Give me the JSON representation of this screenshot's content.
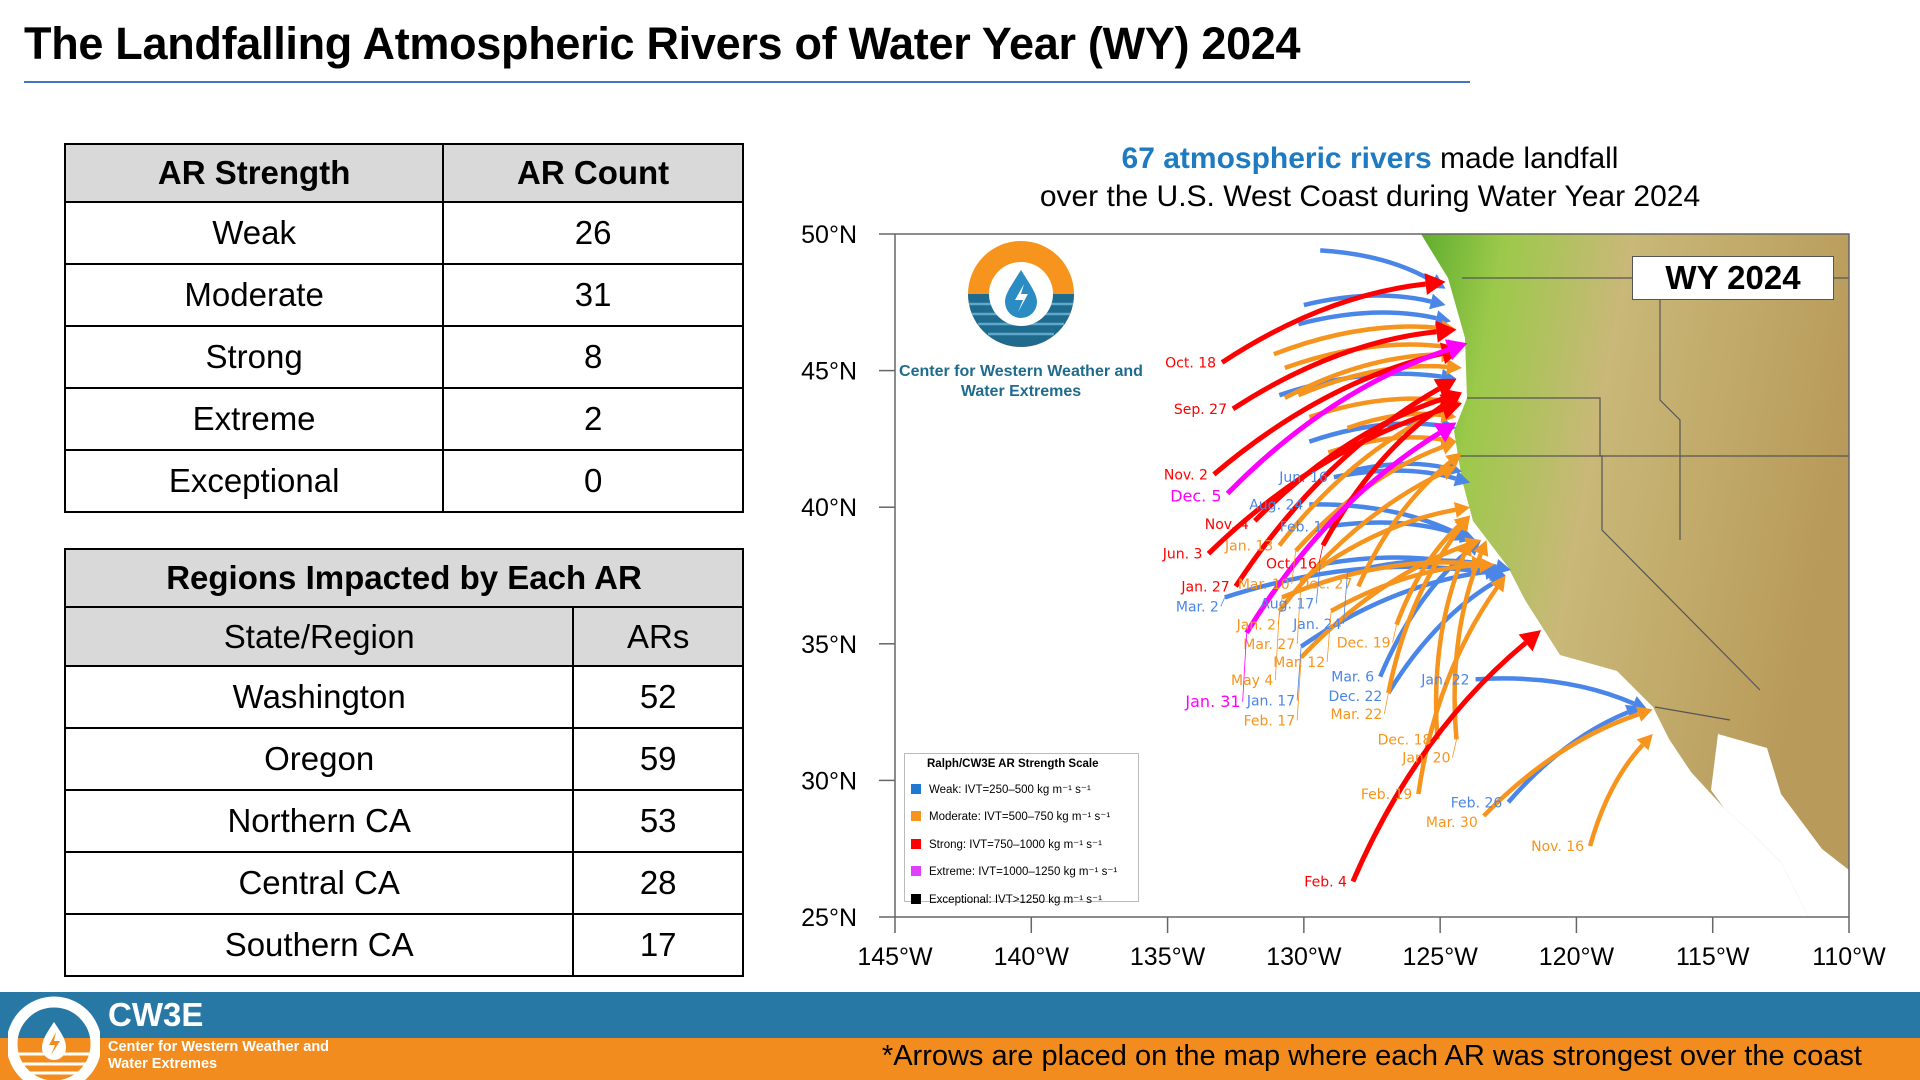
{
  "title": "The Landfalling Atmospheric Rivers of Water Year (WY) 2024",
  "strength_table": {
    "headers": [
      "AR Strength",
      "AR Count"
    ],
    "rows": [
      [
        "Weak",
        "26"
      ],
      [
        "Moderate",
        "31"
      ],
      [
        "Strong",
        "8"
      ],
      [
        "Extreme",
        "2"
      ],
      [
        "Exceptional",
        "0"
      ]
    ]
  },
  "regions_table": {
    "caption": "Regions Impacted by Each AR",
    "headers": [
      "State/Region",
      "ARs"
    ],
    "rows": [
      [
        "Washington",
        "52"
      ],
      [
        "Oregon",
        "59"
      ],
      [
        "Northern CA",
        "53"
      ],
      [
        "Central CA",
        "28"
      ],
      [
        "Southern CA",
        "17"
      ]
    ]
  },
  "subtitle": {
    "highlight": "67 atmospheric rivers",
    "rest1": " made landfall",
    "line2": "over the U.S. West Coast during Water Year 2024"
  },
  "map_badge": "WY 2024",
  "map_logo_text": "Center for Western Weather and Water Extremes",
  "legend": {
    "title": "Ralph/CW3E AR Strength Scale",
    "items": [
      {
        "label": "Weak: IVT=250–500 kg m⁻¹ s⁻¹",
        "color": "#4a86e8"
      },
      {
        "label": "Moderate: IVT=500–750 kg m⁻¹ s⁻¹",
        "color": "#f7941d"
      },
      {
        "label": "Strong: IVT=750–1000 kg m⁻¹ s⁻¹",
        "color": "#ff0000"
      },
      {
        "label": "Extreme: IVT=1000–1250 kg m⁻¹ s⁻¹",
        "color": "#ff00ff"
      },
      {
        "label": "Exceptional: IVT>1250 kg m⁻¹ s⁻¹",
        "color": "#000000"
      }
    ]
  },
  "footer": {
    "brand": "CW3E",
    "brand_sub": "Center for Western Weather and Water Extremes",
    "note": "*Arrows are placed on the map where each AR was strongest over the coast"
  },
  "chart_data": {
    "type": "map",
    "lon_range": [
      -145,
      -110
    ],
    "lat_range": [
      25,
      50
    ],
    "lat_ticks": [
      {
        "v": 50,
        "l": "50°N"
      },
      {
        "v": 45,
        "l": "45°N"
      },
      {
        "v": 40,
        "l": "40°N"
      },
      {
        "v": 35,
        "l": "35°N"
      },
      {
        "v": 30,
        "l": "30°N"
      },
      {
        "v": 25,
        "l": "25°N"
      }
    ],
    "lon_ticks": [
      {
        "v": -145,
        "l": "145°W"
      },
      {
        "v": -140,
        "l": "140°W"
      },
      {
        "v": -135,
        "l": "135°W"
      },
      {
        "v": -130,
        "l": "130°W"
      },
      {
        "v": -125,
        "l": "125°W"
      },
      {
        "v": -120,
        "l": "120°W"
      },
      {
        "v": -115,
        "l": "115°W"
      },
      {
        "v": -110,
        "l": "110°W"
      }
    ],
    "colors": {
      "weak": "#4a86e8",
      "moderate": "#f7941d",
      "strong": "#ff0000",
      "extreme": "#ff00ff"
    },
    "arrows": [
      {
        "label": "Oct. 18",
        "s": "strong",
        "from": [
          -133.0,
          45.3
        ],
        "to": [
          -124.8,
          48.25
        ]
      },
      {
        "label": "Sep. 27",
        "s": "strong",
        "from": [
          -132.6,
          43.6
        ],
        "to": [
          -124.4,
          46.5
        ]
      },
      {
        "label": "Nov. 2",
        "s": "strong",
        "from": [
          -133.3,
          41.2
        ],
        "to": [
          -124.2,
          45.8
        ]
      },
      {
        "label": "Dec. 5",
        "s": "extreme",
        "from": [
          -132.8,
          40.5
        ],
        "to": [
          -124.0,
          46.0
        ]
      },
      {
        "label": "Nov. 4",
        "s": "strong",
        "from": [
          -131.8,
          39.5
        ],
        "to": [
          -124.2,
          44.2
        ]
      },
      {
        "label": "Jun. 3",
        "s": "strong",
        "from": [
          -133.5,
          38.3
        ],
        "to": [
          -124.2,
          43.8
        ]
      },
      {
        "label": "Jan. 27",
        "s": "strong",
        "from": [
          -132.5,
          37.1
        ],
        "to": [
          -124.4,
          44.7
        ]
      },
      {
        "label": "Jan. 31",
        "s": "extreme",
        "from": [
          -132.1,
          35.4
        ],
        "to": [
          -124.4,
          43.1
        ]
      },
      {
        "label": "Feb. 4",
        "s": "strong",
        "from": [
          -128.2,
          26.3
        ],
        "to": [
          -121.3,
          35.5
        ]
      },
      {
        "label": "Oct. 16",
        "s": "strong",
        "from": [
          -129.3,
          38.6
        ],
        "to": [
          -124.2,
          44.2
        ]
      },
      {
        "label": "Jun. 16",
        "s": "weak",
        "from": [
          -128.9,
          41.1
        ],
        "to": [
          -123.9,
          40.9
        ]
      },
      {
        "label": "Aug. 24",
        "s": "weak",
        "from": [
          -129.8,
          40.1
        ],
        "to": [
          -123.9,
          38.8
        ]
      },
      {
        "label": "Feb. 1",
        "s": "weak",
        "from": [
          -129.1,
          39.3
        ],
        "to": [
          -123.7,
          38.8
        ]
      },
      {
        "label": "Aug. 17",
        "s": "weak",
        "from": [
          -129.4,
          37.9
        ],
        "to": [
          -122.6,
          37.5
        ]
      },
      {
        "label": "Jan. 24",
        "s": "weak",
        "from": [
          -128.4,
          37.6
        ],
        "to": [
          -122.4,
          37.7
        ]
      },
      {
        "label": "Mar. 2",
        "s": "weak",
        "from": [
          -132.9,
          36.7
        ],
        "to": [
          -122.6,
          37.5
        ]
      },
      {
        "label": "Jan. 17",
        "s": "weak",
        "from": [
          -130.1,
          34.9
        ],
        "to": [
          -122.8,
          37.7
        ]
      },
      {
        "label": "Mar. 6",
        "s": "weak",
        "from": [
          -127.2,
          33.8
        ],
        "to": [
          -123.5,
          38.8
        ]
      },
      {
        "label": "Dec. 22",
        "s": "weak",
        "from": [
          -126.9,
          33.2
        ],
        "to": [
          -122.6,
          37.5
        ]
      },
      {
        "label": "Jan. 22",
        "s": "weak",
        "from": [
          -123.7,
          33.7
        ],
        "to": [
          -117.4,
          32.6
        ]
      },
      {
        "label": "Feb. 26",
        "s": "weak",
        "from": [
          -122.5,
          29.2
        ],
        "to": [
          -117.6,
          32.7
        ]
      },
      {
        "label": "Jan. 13",
        "s": "moderate",
        "from": [
          -130.9,
          38.6
        ],
        "to": [
          -124.4,
          43.8
        ]
      },
      {
        "label": "Mar. 10",
        "s": "moderate",
        "from": [
          -130.3,
          38.4
        ],
        "to": [
          -124.4,
          42.4
        ]
      },
      {
        "label": "Mar. 27",
        "s": "moderate",
        "from": [
          -130.1,
          37.3
        ],
        "to": [
          -123.9,
          40.0
        ]
      },
      {
        "label": "Jan. 2",
        "s": "moderate",
        "from": [
          -130.8,
          36.7
        ],
        "to": [
          -123.3,
          37.9
        ]
      },
      {
        "label": "Mar. 12",
        "s": "moderate",
        "from": [
          -129.0,
          36.2
        ],
        "to": [
          -123.0,
          37.9
        ]
      },
      {
        "label": "Dec. 27",
        "s": "moderate",
        "from": [
          -128.0,
          37.1
        ],
        "to": [
          -124.2,
          42.0
        ]
      },
      {
        "label": "May 4",
        "s": "moderate",
        "from": [
          -130.9,
          36.2
        ],
        "to": [
          -124.4,
          41.5
        ]
      },
      {
        "label": "Dec. 19",
        "s": "moderate",
        "from": [
          -126.6,
          35.7
        ],
        "to": [
          -123.9,
          39.7
        ]
      },
      {
        "label": "Feb. 17",
        "s": "moderate",
        "from": [
          -130.1,
          34.5
        ],
        "to": [
          -123.5,
          38.8
        ]
      },
      {
        "label": "Mar. 22",
        "s": "moderate",
        "from": [
          -126.9,
          33.2
        ],
        "to": [
          -123.9,
          39.7
        ]
      },
      {
        "label": "Dec. 18",
        "s": "moderate",
        "from": [
          -125.1,
          31.5
        ],
        "to": [
          -123.9,
          38.8
        ]
      },
      {
        "label": "Jan. 20",
        "s": "moderate",
        "from": [
          -124.4,
          31.5
        ],
        "to": [
          -123.3,
          38.8
        ]
      },
      {
        "label": "Feb. 19",
        "s": "moderate",
        "from": [
          -125.8,
          29.5
        ],
        "to": [
          -122.6,
          37.5
        ]
      },
      {
        "label": "Mar. 30",
        "s": "moderate",
        "from": [
          -123.4,
          28.7
        ],
        "to": [
          -117.2,
          32.6
        ]
      },
      {
        "label": "Nov. 16",
        "s": "moderate",
        "from": [
          -119.5,
          27.6
        ],
        "to": [
          -117.2,
          31.7
        ]
      },
      {
        "label": "",
        "s": "weak",
        "from": [
          -129.4,
          49.4
        ],
        "to": [
          -124.8,
          48.0
        ]
      },
      {
        "label": "",
        "s": "weak",
        "from": [
          -130.0,
          47.4
        ],
        "to": [
          -124.8,
          47.4
        ]
      },
      {
        "label": "",
        "s": "weak",
        "from": [
          -130.2,
          46.7
        ],
        "to": [
          -124.6,
          46.8
        ]
      },
      {
        "label": "",
        "s": "moderate",
        "from": [
          -131.1,
          45.6
        ],
        "to": [
          -124.4,
          46.5
        ]
      },
      {
        "label": "",
        "s": "moderate",
        "from": [
          -130.7,
          45.1
        ],
        "to": [
          -124.2,
          45.8
        ]
      },
      {
        "label": "",
        "s": "moderate",
        "from": [
          -130.7,
          44.0
        ],
        "to": [
          -124.4,
          45.6
        ]
      },
      {
        "label": "",
        "s": "moderate",
        "from": [
          -130.2,
          44.1
        ],
        "to": [
          -124.2,
          45.1
        ]
      },
      {
        "label": "",
        "s": "weak",
        "from": [
          -130.9,
          44.1
        ],
        "to": [
          -124.4,
          44.7
        ]
      },
      {
        "label": "",
        "s": "moderate",
        "from": [
          -129.8,
          43.3
        ],
        "to": [
          -124.2,
          43.8
        ]
      },
      {
        "label": "",
        "s": "weak",
        "from": [
          -129.8,
          42.4
        ],
        "to": [
          -124.4,
          42.9
        ]
      },
      {
        "label": "",
        "s": "moderate",
        "from": [
          -128.4,
          42.9
        ],
        "to": [
          -124.4,
          43.3
        ]
      },
      {
        "label": "",
        "s": "moderate",
        "from": [
          -129.1,
          42.0
        ],
        "to": [
          -124.4,
          42.4
        ]
      },
      {
        "label": "",
        "s": "weak",
        "from": [
          -128.4,
          41.3
        ],
        "to": [
          -124.2,
          41.3
        ]
      }
    ]
  }
}
